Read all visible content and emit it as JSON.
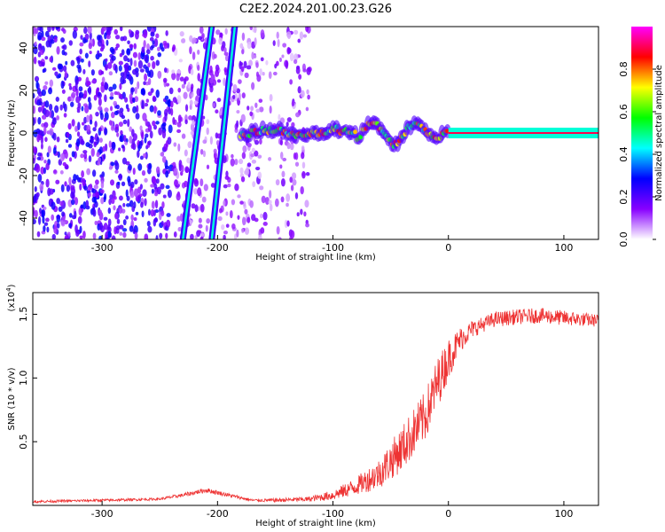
{
  "title": "C2E2.2024.201.00.23.G26",
  "chart_data": [
    {
      "type": "heatmap",
      "xlabel": "Height of straight line (km)",
      "ylabel": "Frequency (Hz)",
      "xlim": [
        -360,
        130
      ],
      "ylim": [
        -50,
        50
      ],
      "xticks": [
        -300,
        -200,
        -100,
        0,
        100
      ],
      "yticks": [
        -40,
        -20,
        0,
        20,
        40
      ],
      "colorbar": {
        "label": "Normalized spectral amplitude",
        "range": [
          0,
          1
        ],
        "ticks": [
          0.0,
          0.2,
          0.4,
          0.6,
          0.8
        ],
        "colors": [
          "#ffffff",
          "#8800ff",
          "#0000ff",
          "#00ffff",
          "#00ff00",
          "#ffff00",
          "#ff0000",
          "#ff00ff"
        ]
      },
      "features": {
        "strong_tone_x_start": -180,
        "strong_tone_x_end": 130,
        "strong_tone_freq": 0,
        "steep_track_1": {
          "x": [
            -230,
            -205
          ],
          "freq": [
            -50,
            50
          ]
        },
        "steep_track_2": {
          "x": [
            -205,
            -185
          ],
          "freq": [
            -50,
            50
          ]
        },
        "noise_region_x": [
          -360,
          -120
        ]
      }
    },
    {
      "type": "line",
      "xlabel": "Height of straight line (km)",
      "ylabel": "SNR (10 * v/v)",
      "yscale_label": "(x10",
      "yscale_exp": "4",
      "yscale_close": ")",
      "xlim": [
        -360,
        130
      ],
      "ylim": [
        0,
        1.67
      ],
      "xticks": [
        -300,
        -200,
        -100,
        0,
        100
      ],
      "yticks": [
        0.5,
        1.0,
        1.5
      ],
      "series": [
        {
          "color": "#ee3333",
          "x": [
            -360,
            -300,
            -250,
            -230,
            -210,
            -190,
            -170,
            -150,
            -120,
            -100,
            -80,
            -60,
            -40,
            -20,
            -10,
            0,
            10,
            20,
            30,
            40,
            60,
            80,
            100,
            130
          ],
          "y": [
            0.03,
            0.04,
            0.05,
            0.08,
            0.12,
            0.08,
            0.04,
            0.04,
            0.05,
            0.08,
            0.15,
            0.25,
            0.45,
            0.7,
            0.95,
            1.15,
            1.3,
            1.38,
            1.42,
            1.46,
            1.48,
            1.49,
            1.47,
            1.45
          ],
          "noise": [
            0.01,
            0.01,
            0.01,
            0.015,
            0.02,
            0.015,
            0.01,
            0.015,
            0.02,
            0.04,
            0.07,
            0.12,
            0.18,
            0.2,
            0.2,
            0.16,
            0.1,
            0.07,
            0.06,
            0.06,
            0.06,
            0.06,
            0.06,
            0.05
          ]
        }
      ]
    }
  ]
}
